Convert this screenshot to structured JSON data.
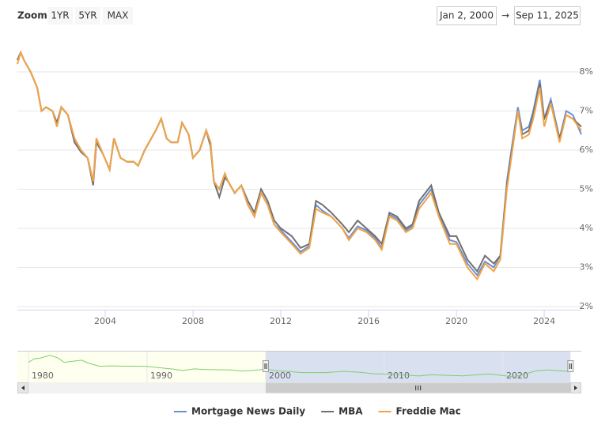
{
  "chart_data": {
    "type": "line",
    "zoom_label": "Zoom",
    "zoom_buttons": [
      "1YR",
      "5YR",
      "MAX"
    ],
    "range_from": "Jan 2, 2000",
    "range_arrow": "→",
    "range_to": "Sep 11, 2025",
    "x": [
      2000.0,
      2000.15,
      2000.3,
      2000.6,
      2000.9,
      2001.1,
      2001.3,
      2001.6,
      2001.8,
      2002.0,
      2002.3,
      2002.6,
      2002.9,
      2003.2,
      2003.45,
      2003.6,
      2003.9,
      2004.2,
      2004.4,
      2004.7,
      2005.0,
      2005.3,
      2005.5,
      2005.8,
      2006.0,
      2006.3,
      2006.55,
      2006.8,
      2007.0,
      2007.3,
      2007.5,
      2007.8,
      2008.0,
      2008.3,
      2008.6,
      2008.8,
      2008.95,
      2009.2,
      2009.45,
      2009.6,
      2009.9,
      2010.2,
      2010.5,
      2010.8,
      2011.1,
      2011.4,
      2011.7,
      2012.0,
      2012.5,
      2012.9,
      2013.3,
      2013.6,
      2013.9,
      2014.3,
      2014.8,
      2015.1,
      2015.5,
      2015.9,
      2016.3,
      2016.6,
      2016.95,
      2017.3,
      2017.7,
      2018.0,
      2018.3,
      2018.85,
      2019.2,
      2019.7,
      2020.0,
      2020.5,
      2020.95,
      2021.3,
      2021.7,
      2022.0,
      2022.3,
      2022.45,
      2022.8,
      2023.0,
      2023.3,
      2023.5,
      2023.8,
      2024.0,
      2024.3,
      2024.7,
      2025.0,
      2025.3,
      2025.69
    ],
    "series": [
      {
        "name": "Mortgage News Daily",
        "color": "#6b8fd6",
        "values": [
          8.3,
          8.5,
          8.3,
          8.0,
          7.6,
          7.0,
          7.1,
          7.0,
          6.6,
          7.1,
          6.9,
          6.3,
          6.0,
          5.8,
          5.2,
          6.3,
          5.9,
          5.5,
          6.3,
          5.8,
          5.7,
          5.7,
          5.6,
          6.0,
          6.2,
          6.5,
          6.8,
          6.3,
          6.2,
          6.2,
          6.7,
          6.4,
          5.8,
          6.0,
          6.5,
          6.2,
          5.2,
          5.0,
          5.4,
          5.2,
          4.9,
          5.1,
          4.6,
          4.3,
          4.9,
          4.6,
          4.1,
          3.95,
          3.65,
          3.4,
          3.55,
          4.6,
          4.45,
          4.3,
          4.0,
          3.75,
          4.05,
          3.95,
          3.75,
          3.5,
          4.35,
          4.25,
          3.95,
          4.05,
          4.6,
          5.0,
          4.35,
          3.7,
          3.65,
          3.1,
          2.8,
          3.15,
          3.0,
          3.3,
          5.2,
          5.8,
          7.1,
          6.5,
          6.6,
          7.0,
          7.8,
          6.8,
          7.3,
          6.3,
          7.0,
          6.9,
          6.4
        ]
      },
      {
        "name": "MBA",
        "color": "#707070",
        "values": [
          8.3,
          8.5,
          8.3,
          8.0,
          7.6,
          7.0,
          7.1,
          7.0,
          6.7,
          7.1,
          6.9,
          6.2,
          5.95,
          5.8,
          5.1,
          6.2,
          5.9,
          5.5,
          6.3,
          5.8,
          5.7,
          5.7,
          5.6,
          6.0,
          6.2,
          6.5,
          6.8,
          6.3,
          6.2,
          6.2,
          6.7,
          6.4,
          5.8,
          6.0,
          6.5,
          6.1,
          5.2,
          4.8,
          5.3,
          5.2,
          4.9,
          5.1,
          4.7,
          4.4,
          5.0,
          4.7,
          4.2,
          4.0,
          3.8,
          3.5,
          3.6,
          4.7,
          4.6,
          4.4,
          4.1,
          3.9,
          4.2,
          4.0,
          3.8,
          3.6,
          4.4,
          4.3,
          4.0,
          4.1,
          4.7,
          5.1,
          4.4,
          3.8,
          3.8,
          3.2,
          2.9,
          3.3,
          3.1,
          3.3,
          5.1,
          5.7,
          7.0,
          6.4,
          6.5,
          6.9,
          7.7,
          6.8,
          7.2,
          6.3,
          6.9,
          6.8,
          6.6
        ]
      },
      {
        "name": "Freddie Mac",
        "color": "#f2a446",
        "values": [
          8.2,
          8.5,
          8.3,
          8.0,
          7.6,
          7.0,
          7.1,
          7.0,
          6.6,
          7.1,
          6.9,
          6.3,
          6.0,
          5.8,
          5.2,
          6.3,
          5.9,
          5.5,
          6.3,
          5.8,
          5.7,
          5.7,
          5.6,
          6.0,
          6.2,
          6.5,
          6.8,
          6.3,
          6.2,
          6.2,
          6.7,
          6.4,
          5.8,
          6.0,
          6.5,
          6.2,
          5.2,
          5.0,
          5.4,
          5.2,
          4.9,
          5.1,
          4.6,
          4.3,
          4.9,
          4.6,
          4.1,
          3.9,
          3.6,
          3.35,
          3.5,
          4.5,
          4.4,
          4.3,
          4.0,
          3.7,
          4.0,
          3.9,
          3.7,
          3.45,
          4.3,
          4.2,
          3.9,
          4.0,
          4.5,
          4.9,
          4.3,
          3.6,
          3.6,
          3.0,
          2.7,
          3.1,
          2.9,
          3.2,
          5.0,
          5.6,
          7.0,
          6.3,
          6.4,
          6.8,
          7.6,
          6.6,
          7.2,
          6.2,
          6.9,
          6.8,
          6.5
        ]
      }
    ],
    "xlim": [
      2000,
      2025.69
    ],
    "xticks": [
      2004,
      2008,
      2012,
      2016,
      2020,
      2024
    ],
    "ylim": [
      2,
      9
    ],
    "yticks": [
      {
        "value": 2,
        "label": "2%"
      },
      {
        "value": 3,
        "label": "3%"
      },
      {
        "value": 4,
        "label": "4%"
      },
      {
        "value": 5,
        "label": "5%"
      },
      {
        "value": 6,
        "label": "6%"
      },
      {
        "value": 7,
        "label": "7%"
      },
      {
        "value": 8,
        "label": "8%"
      }
    ],
    "grid": true,
    "legend": "bottom",
    "navigator": {
      "color": "#7ccf6f",
      "x": [
        1980,
        1980.5,
        1981,
        1981.8,
        1982.5,
        1983,
        1984,
        1984.5,
        1985,
        1986,
        1987,
        1988,
        1989,
        1990,
        1991,
        1992,
        1993,
        1994,
        1995,
        1996,
        1997,
        1998,
        1999,
        2000,
        2001,
        2002,
        2003,
        2005,
        2006.5,
        2008,
        2009,
        2011,
        2012.9,
        2014,
        2016.6,
        2018.85,
        2020.95,
        2022.8,
        2023.8,
        2025,
        2025.69
      ],
      "values": [
        13,
        15.5,
        16,
        18,
        16,
        13,
        14,
        14.5,
        12.5,
        10.2,
        10.5,
        10.3,
        10.3,
        10.1,
        9.2,
        8.4,
        7.3,
        8.4,
        7.9,
        7.8,
        7.6,
        6.9,
        7.4,
        8.2,
        7.0,
        6.5,
        5.8,
        5.8,
        6.6,
        6.0,
        5.0,
        4.5,
        3.4,
        4.2,
        3.5,
        4.9,
        2.7,
        7.0,
        7.6,
        6.9,
        6.5
      ],
      "xlim": [
        1979.07,
        2026.6
      ],
      "xticks": [
        1980,
        1990,
        2000,
        2010,
        2020
      ],
      "ylim": [
        0,
        20
      ]
    }
  }
}
